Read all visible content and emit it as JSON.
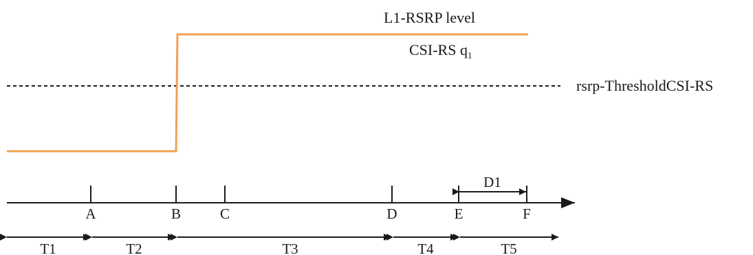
{
  "signal": {
    "label": "L1-RSRP level",
    "sub_label": "CSI-RS q",
    "sub_label_subscript": "1",
    "color": "#F0A050"
  },
  "threshold": {
    "label": "rsrp-ThresholdCSI-RS"
  },
  "timeline": {
    "ticks": [
      "A",
      "B",
      "C",
      "D",
      "E",
      "F"
    ],
    "interval_label": "D1",
    "segments": [
      "T1",
      "T2",
      "T3",
      "T4",
      "T5"
    ]
  }
}
